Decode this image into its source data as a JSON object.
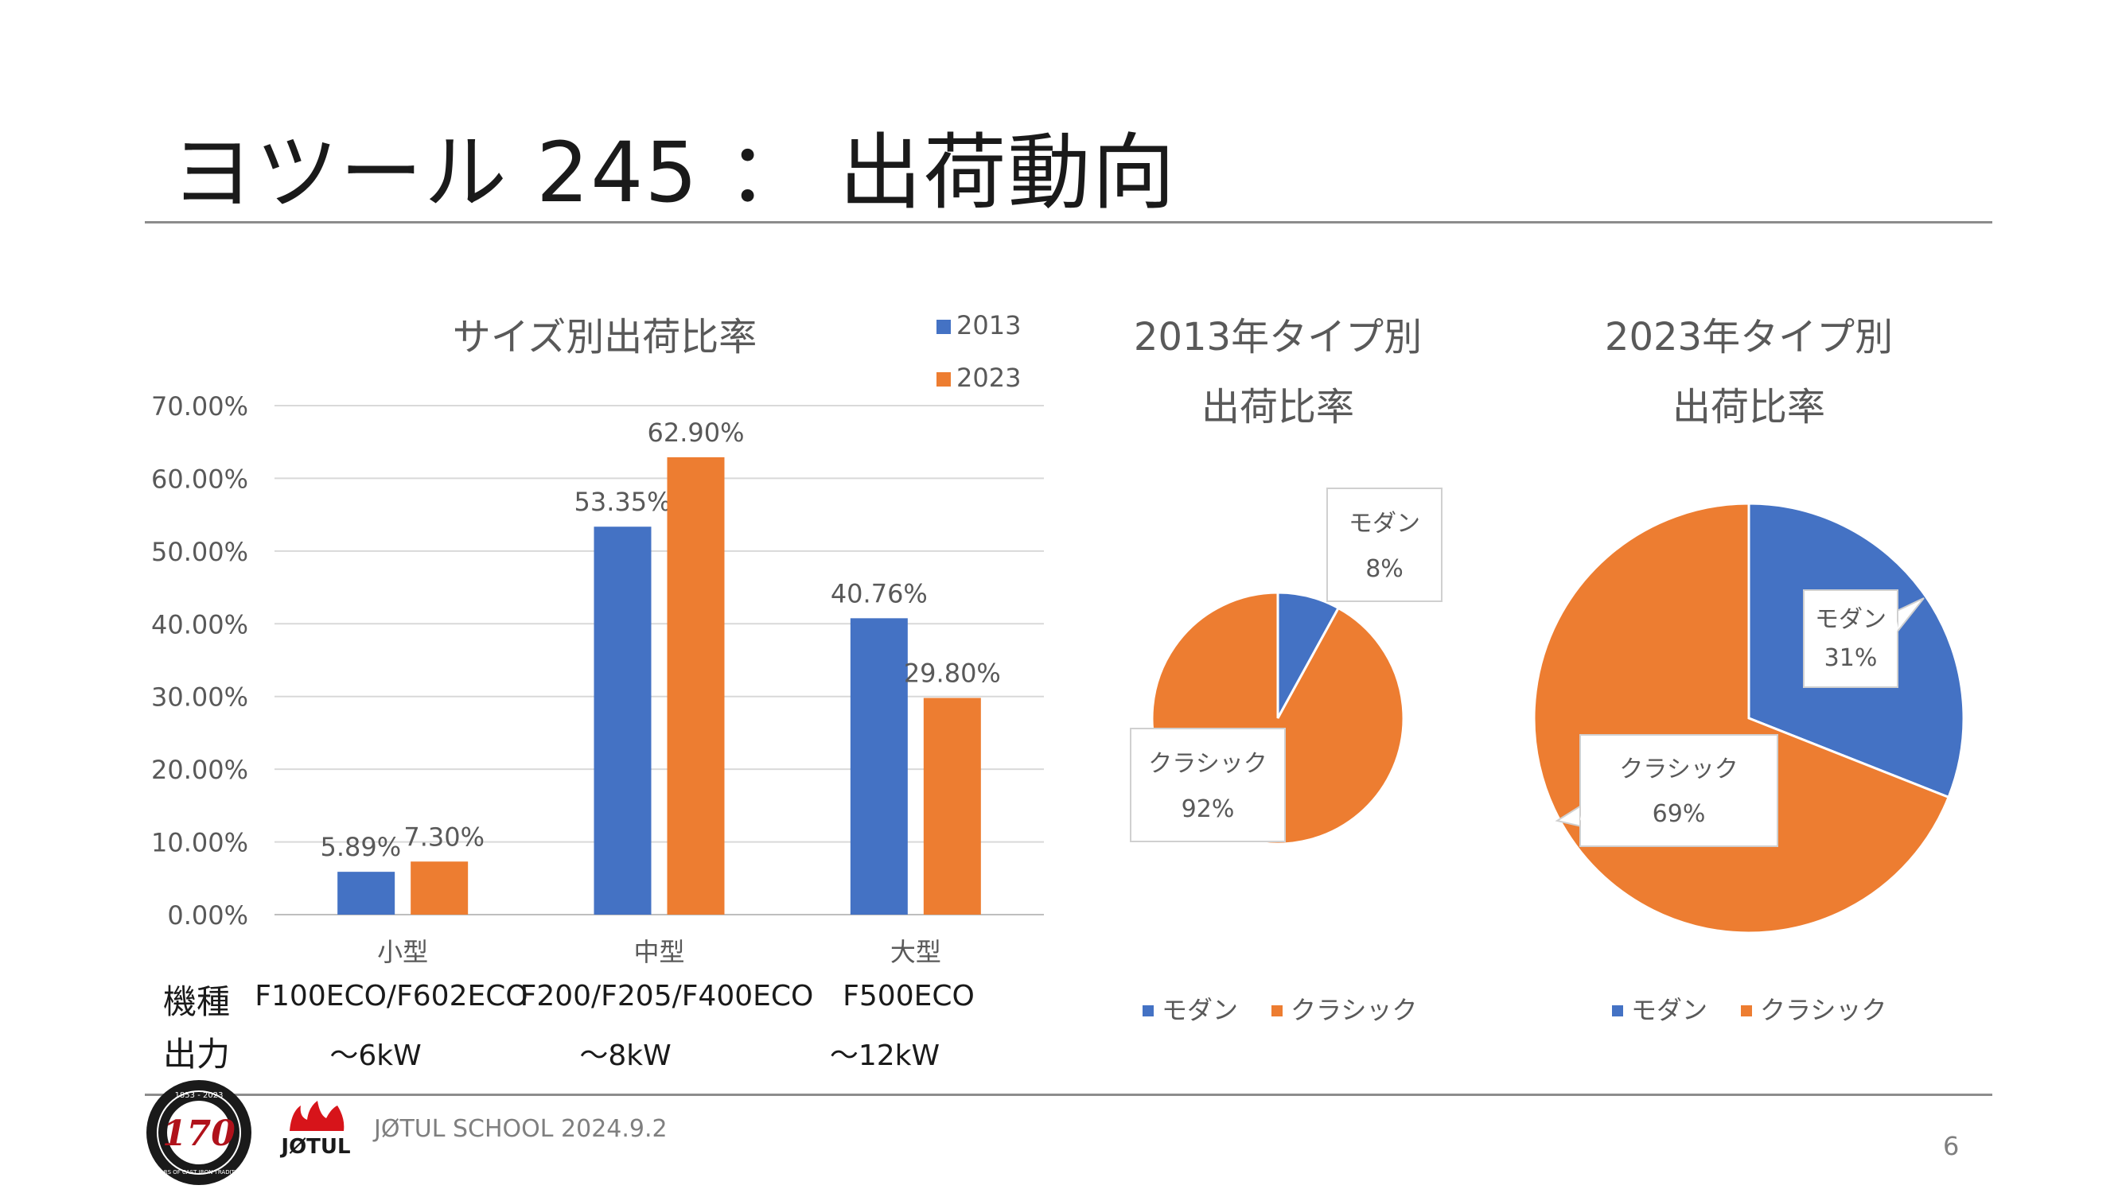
{
  "slide": {
    "title": "ヨツール 245 ： 出荷動向",
    "footer": "JØTUL SCHOOL 2024.9.2",
    "page_number": "6",
    "logo_seal": {
      "years": "1853 - 2023",
      "number": "170",
      "ring_text": "YEARS OF CAST IRON TRADITION"
    },
    "logo_brand": "JØTUL"
  },
  "colors": {
    "blue": "#4472C4",
    "orange": "#ED7D31",
    "grid": "#D9D9D9",
    "text": "#595959"
  },
  "model_rows": {
    "model_label": "機種",
    "output_label": "出力",
    "models": [
      "F100ECO/F602ECO",
      "F200/F205/F400ECO",
      "F500ECO"
    ],
    "outputs": [
      "～6kW",
      "～8kW",
      "～12kW"
    ]
  },
  "chart_data": [
    {
      "type": "bar",
      "title": "サイズ別出荷比率",
      "categories": [
        "小型",
        "中型",
        "大型"
      ],
      "series": [
        {
          "name": "2013",
          "values": [
            5.89,
            53.35,
            40.76
          ],
          "labels": [
            "5.89%",
            "53.35%",
            "40.76%"
          ]
        },
        {
          "name": "2023",
          "values": [
            7.3,
            62.9,
            29.8
          ],
          "labels": [
            "7.30%",
            "62.90%",
            "29.80%"
          ]
        }
      ],
      "ylim": [
        0,
        70
      ],
      "yticks": [
        "0.00%",
        "10.00%",
        "20.00%",
        "30.00%",
        "40.00%",
        "50.00%",
        "60.00%",
        "70.00%"
      ],
      "grid": true,
      "legend": "top-right"
    },
    {
      "type": "pie",
      "title": [
        "2013年タイプ別",
        "出荷比率"
      ],
      "slices": [
        {
          "name": "モダン",
          "value": 8,
          "label": "8%"
        },
        {
          "name": "クラシック",
          "value": 92,
          "label": "92%"
        }
      ],
      "legend": "bottom"
    },
    {
      "type": "pie",
      "title": [
        "2023年タイプ別",
        "出荷比率"
      ],
      "slices": [
        {
          "name": "モダン",
          "value": 31,
          "label": "31%"
        },
        {
          "name": "クラシック",
          "value": 69,
          "label": "69%"
        }
      ],
      "legend": "bottom"
    }
  ]
}
